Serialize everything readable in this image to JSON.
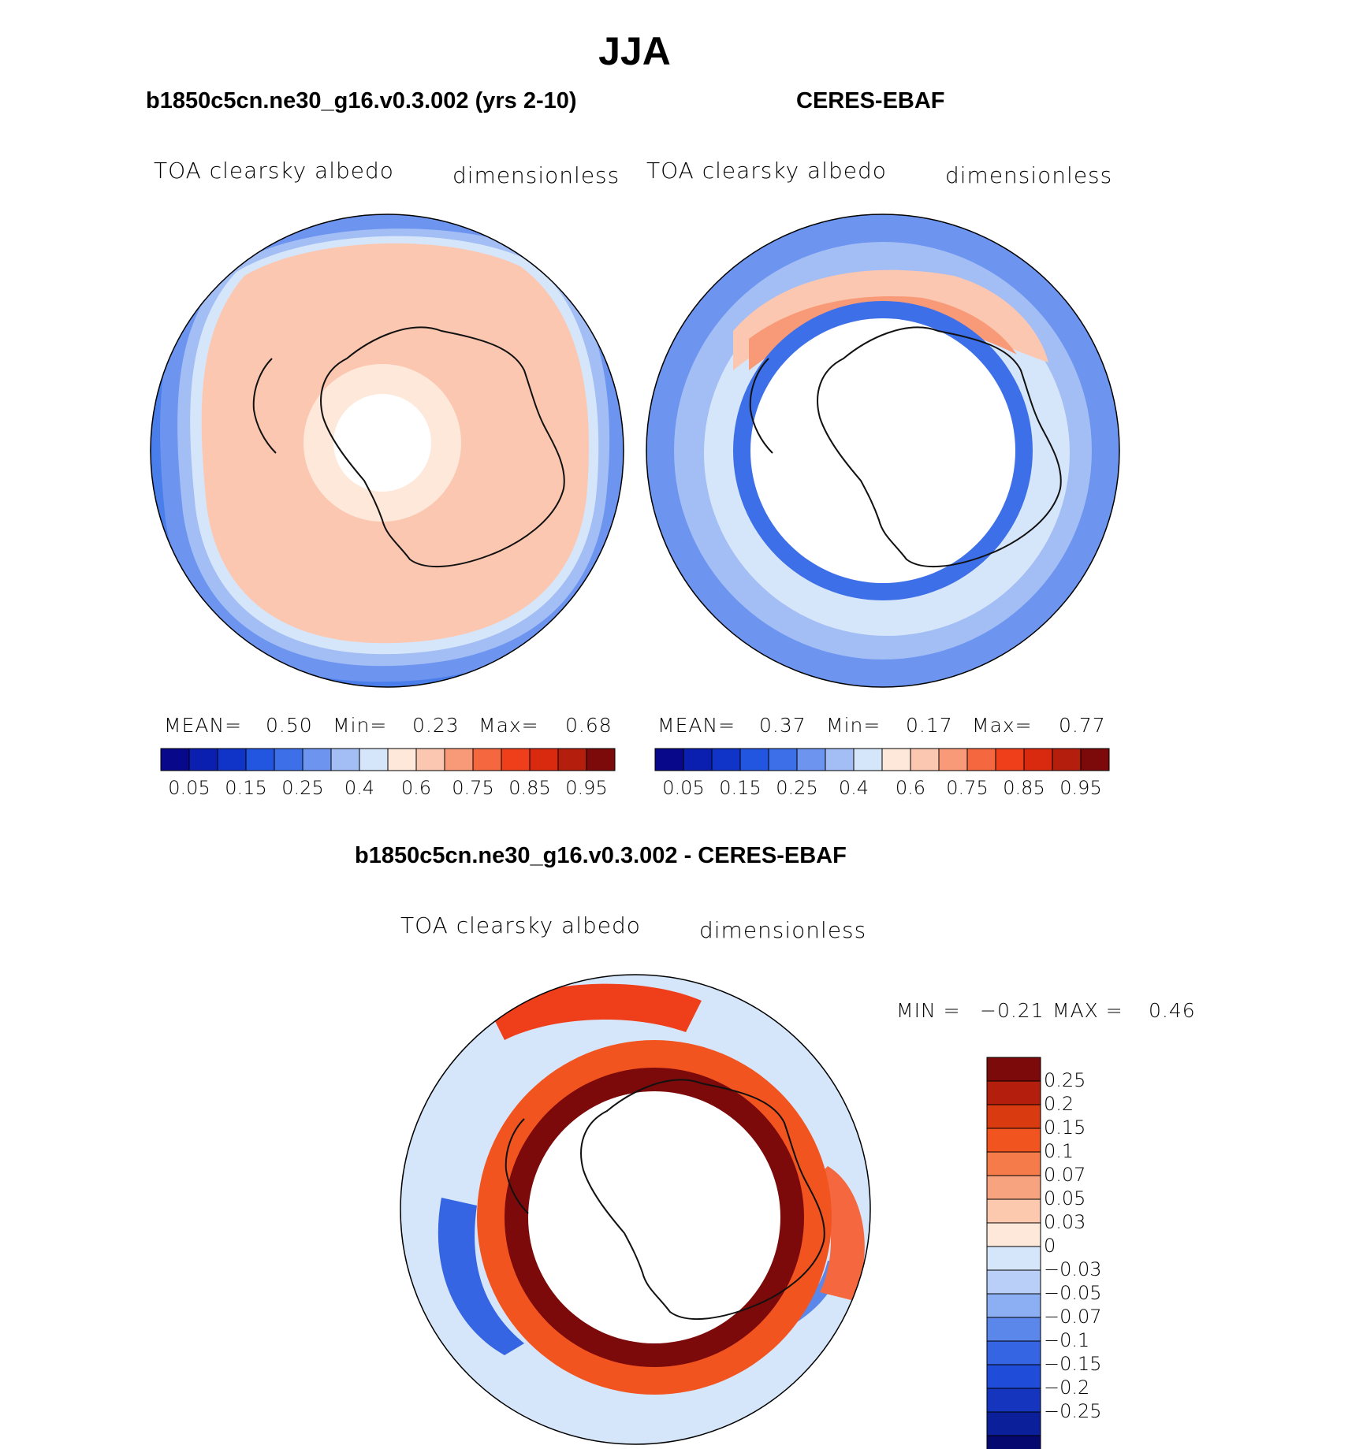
{
  "title": "JJA",
  "panels": [
    {
      "title": "b1850c5cn.ne30_g16.v0.3.002 (yrs 2-10)",
      "variable": "TOA clearsky albedo",
      "units": "dimensionless",
      "stats": {
        "mean_label": "MEAN=",
        "mean": "0.50",
        "min_label": "Min=",
        "min": "0.23",
        "max_label": "Max=",
        "max": "0.68"
      }
    },
    {
      "title": "CERES-EBAF",
      "variable": "TOA clearsky albedo",
      "units": "dimensionless",
      "stats": {
        "mean_label": "MEAN=",
        "mean": "0.37",
        "min_label": "Min=",
        "min": "0.17",
        "max_label": "Max=",
        "max": "0.77"
      }
    }
  ],
  "difference": {
    "title": "b1850c5cn.ne30_g16.v0.3.002 - CERES-EBAF",
    "variable": "TOA clearsky albedo",
    "units": "dimensionless",
    "min_label": "MIN =",
    "min": "−0.21",
    "max_label": "MAX =",
    "max": "0.46"
  },
  "colorbar_abs": {
    "colors": [
      "#08088a",
      "#0a1fb0",
      "#1033c8",
      "#2255e0",
      "#3d6fe8",
      "#6d95f0",
      "#a3bdf5",
      "#d6e6fa",
      "#fde8da",
      "#fcc7b0",
      "#f89a77",
      "#f5683f",
      "#ef3f1a",
      "#d92a10",
      "#b31f0c",
      "#7d0a0a"
    ],
    "tick_labels": [
      "0.05",
      "0.15",
      "0.25",
      "0.4",
      "0.6",
      "0.75",
      "0.85",
      "0.95"
    ]
  },
  "colorbar_diff": {
    "colors": [
      "#7d0a0a",
      "#b31f0c",
      "#d93a10",
      "#f25420",
      "#f67b4a",
      "#f8a37f",
      "#fcc8ae",
      "#fde8da",
      "#d6e6fa",
      "#b9cff7",
      "#8caef2",
      "#5b86ea",
      "#3565e2",
      "#1f4cd8",
      "#1535be",
      "#0b1f9a",
      "#05086e"
    ],
    "tick_labels": [
      "0.25",
      "0.2",
      "0.15",
      "0.1",
      "0.07",
      "0.05",
      "0.03",
      "0",
      "−0.03",
      "−0.05",
      "−0.07",
      "−0.1",
      "−0.15",
      "−0.2",
      "−0.25"
    ]
  },
  "chart_data": {
    "type": "map",
    "projection": "south-polar-stereographic",
    "season": "JJA",
    "field": "TOA clearsky albedo",
    "units": "dimensionless",
    "maps": [
      {
        "name": "b1850c5cn.ne30_g16.v0.3.002 (yrs 2-10)",
        "mean": 0.5,
        "min": 0.23,
        "max": 0.68
      },
      {
        "name": "CERES-EBAF",
        "mean": 0.37,
        "min": 0.17,
        "max": 0.77
      },
      {
        "name": "b1850c5cn.ne30_g16.v0.3.002 - CERES-EBAF",
        "min": -0.21,
        "max": 0.46
      }
    ],
    "abs_levels": [
      0.05,
      0.1,
      0.15,
      0.2,
      0.25,
      0.3,
      0.4,
      0.5,
      0.6,
      0.7,
      0.75,
      0.8,
      0.85,
      0.9,
      0.95
    ],
    "diff_levels": [
      -0.25,
      -0.2,
      -0.15,
      -0.1,
      -0.07,
      -0.05,
      -0.03,
      0,
      0.03,
      0.05,
      0.07,
      0.1,
      0.15,
      0.2,
      0.25
    ]
  }
}
